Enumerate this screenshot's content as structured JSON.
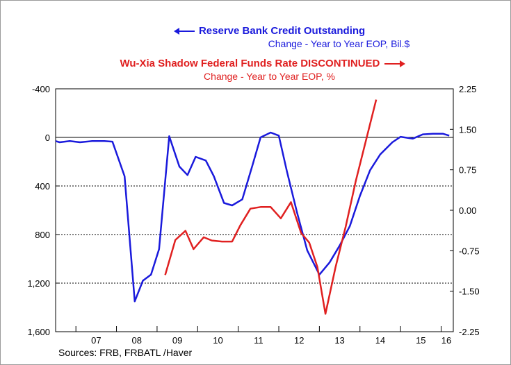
{
  "chart_data": {
    "type": "line",
    "legend_placement": "top",
    "grid": true,
    "series": [
      {
        "name": "Reserve Bank Credit Outstanding",
        "subtitle": "Change - Year to Year    EOP, Bil.$",
        "axis": "left",
        "color": "#1a1adc",
        "arrow": "left",
        "points": [
          [
            2006.5,
            30
          ],
          [
            2006.6,
            40
          ],
          [
            2006.85,
            30
          ],
          [
            2007.1,
            40
          ],
          [
            2007.4,
            30
          ],
          [
            2007.7,
            30
          ],
          [
            2007.9,
            35
          ],
          [
            2008.2,
            320
          ],
          [
            2008.45,
            1350
          ],
          [
            2008.65,
            1180
          ],
          [
            2008.85,
            1130
          ],
          [
            2009.05,
            920
          ],
          [
            2009.3,
            -10
          ],
          [
            2009.55,
            240
          ],
          [
            2009.75,
            310
          ],
          [
            2009.95,
            160
          ],
          [
            2010.2,
            190
          ],
          [
            2010.4,
            320
          ],
          [
            2010.65,
            540
          ],
          [
            2010.85,
            560
          ],
          [
            2011.1,
            510
          ],
          [
            2011.35,
            230
          ],
          [
            2011.55,
            0
          ],
          [
            2011.8,
            -40
          ],
          [
            2012.0,
            -15
          ],
          [
            2012.2,
            280
          ],
          [
            2012.45,
            620
          ],
          [
            2012.7,
            930
          ],
          [
            2013.0,
            1130
          ],
          [
            2013.25,
            1030
          ],
          [
            2013.5,
            890
          ],
          [
            2013.75,
            730
          ],
          [
            2014.0,
            480
          ],
          [
            2014.25,
            270
          ],
          [
            2014.5,
            140
          ],
          [
            2014.8,
            40
          ],
          [
            2015.0,
            -5
          ],
          [
            2015.3,
            10
          ],
          [
            2015.55,
            -25
          ],
          [
            2015.8,
            -30
          ],
          [
            2016.05,
            -30
          ],
          [
            2016.2,
            -15
          ]
        ]
      },
      {
        "name": "Wu-Xia Shadow Federal Funds Rate DISCONTINUED",
        "subtitle": "Change - Year to Year    EOP, %",
        "axis": "right",
        "color": "#e02020",
        "arrow": "right",
        "points": [
          [
            2009.2,
            -1.2
          ],
          [
            2009.45,
            -0.55
          ],
          [
            2009.7,
            -0.38
          ],
          [
            2009.9,
            -0.72
          ],
          [
            2010.15,
            -0.5
          ],
          [
            2010.35,
            -0.56
          ],
          [
            2010.6,
            -0.58
          ],
          [
            2010.85,
            -0.58
          ],
          [
            2011.05,
            -0.28
          ],
          [
            2011.3,
            0.03
          ],
          [
            2011.55,
            0.06
          ],
          [
            2011.8,
            0.06
          ],
          [
            2012.05,
            -0.15
          ],
          [
            2012.3,
            0.15
          ],
          [
            2012.55,
            -0.42
          ],
          [
            2012.75,
            -0.6
          ],
          [
            2012.95,
            -1.05
          ],
          [
            2013.15,
            -1.92
          ],
          [
            2013.4,
            -1.05
          ],
          [
            2013.65,
            -0.3
          ],
          [
            2013.9,
            0.55
          ],
          [
            2014.15,
            1.3
          ],
          [
            2014.4,
            2.05
          ]
        ]
      }
    ],
    "left_axis": {
      "inverted": true,
      "range": [
        -400,
        1600
      ],
      "ticks": [
        -400,
        0,
        400,
        800,
        1200,
        1600
      ],
      "tick_labels": [
        "-400",
        "0",
        "400",
        "800",
        "1,200",
        "1,600"
      ]
    },
    "right_axis": {
      "range": [
        -2.25,
        2.25
      ],
      "ticks": [
        2.25,
        1.5,
        0.75,
        0,
        -0.75,
        -1.5,
        -2.25
      ],
      "tick_labels": [
        "2.25",
        "1.50",
        "0.75",
        "0.00",
        "-0.75",
        "-1.50",
        "-2.25"
      ]
    },
    "x_axis": {
      "range": [
        2006.5,
        2016.3
      ],
      "year_boundaries": [
        2007,
        2008,
        2009,
        2010,
        2011,
        2012,
        2013,
        2014,
        2015,
        2016
      ],
      "labels": [
        {
          "x": 2007.5,
          "text": "07"
        },
        {
          "x": 2008.5,
          "text": "08"
        },
        {
          "x": 2009.5,
          "text": "09"
        },
        {
          "x": 2010.5,
          "text": "10"
        },
        {
          "x": 2011.5,
          "text": "11"
        },
        {
          "x": 2012.5,
          "text": "12"
        },
        {
          "x": 2013.5,
          "text": "13"
        },
        {
          "x": 2014.5,
          "text": "14"
        },
        {
          "x": 2015.5,
          "text": "15"
        },
        {
          "x": 2016.5,
          "text": "16"
        }
      ]
    },
    "gridlines_left": [
      400,
      800,
      1200
    ],
    "reference_line": 0
  },
  "footer": {
    "sources": "Sources:  FRB, FRBATL /Haver"
  }
}
